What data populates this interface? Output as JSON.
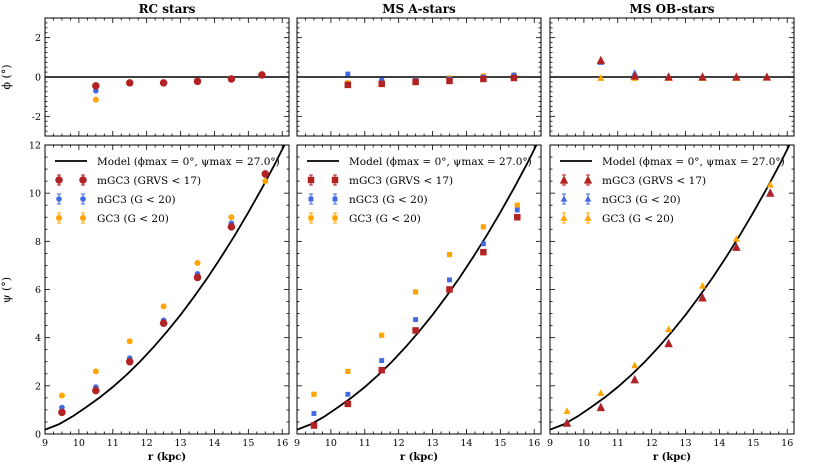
{
  "figure": {
    "xlabel": "r (kpc)",
    "top_ylabel": "ϕ (°)",
    "bottom_ylabel": "ψ (°)",
    "colors": {
      "mGC3": "#b22222",
      "nGC3": "#4169e1",
      "GC3": "#ffa500",
      "model": "#000000"
    }
  },
  "chart_data": [
    {
      "type": "scatter",
      "title": "RC stars",
      "marker": "circle",
      "xlim": [
        9,
        16.2
      ],
      "top": {
        "ylim": [
          -3,
          3
        ],
        "yticks": [
          -2,
          0,
          2
        ],
        "model_y": 0,
        "series": [
          {
            "name": "mGC3",
            "x": [
              10.5,
              11.5,
              12.5,
              13.5,
              14.5,
              15.4
            ],
            "y": [
              -0.45,
              -0.3,
              -0.3,
              -0.22,
              -0.1,
              0.1
            ]
          },
          {
            "name": "nGC3",
            "x": [
              10.5,
              11.5,
              12.5,
              13.5,
              14.5,
              15.4
            ],
            "y": [
              -0.7,
              -0.3,
              -0.3,
              -0.2,
              -0.1,
              0.1
            ]
          },
          {
            "name": "GC3",
            "x": [
              10.5,
              11.5,
              12.5,
              13.5,
              14.5,
              15.4
            ],
            "y": [
              -1.15,
              -0.3,
              -0.3,
              -0.2,
              -0.1,
              0.15
            ]
          }
        ]
      },
      "bottom": {
        "ylim": [
          0,
          12
        ],
        "yticks": [
          0,
          2,
          4,
          6,
          8,
          10,
          12
        ],
        "series": [
          {
            "name": "mGC3",
            "x": [
              9.5,
              10.5,
              11.5,
              12.5,
              13.5,
              14.5,
              15.5
            ],
            "y": [
              0.9,
              1.8,
              3.0,
              4.6,
              6.5,
              8.6,
              10.8
            ]
          },
          {
            "name": "nGC3",
            "x": [
              9.5,
              10.5,
              11.5,
              12.5,
              13.5,
              14.5,
              15.5
            ],
            "y": [
              1.1,
              1.95,
              3.15,
              4.72,
              6.65,
              8.75,
              10.75
            ]
          },
          {
            "name": "GC3",
            "x": [
              9.5,
              10.5,
              11.5,
              12.5,
              13.5,
              14.5,
              15.5
            ],
            "y": [
              1.6,
              2.6,
              3.85,
              5.3,
              7.1,
              9.0,
              10.5
            ]
          }
        ]
      }
    },
    {
      "type": "scatter",
      "title": "MS A-stars",
      "marker": "square",
      "xlim": [
        9,
        16.2
      ],
      "top": {
        "ylim": [
          -3,
          3
        ],
        "yticks": [
          -2,
          0,
          2
        ],
        "model_y": 0,
        "series": [
          {
            "name": "mGC3",
            "x": [
              10.5,
              11.5,
              12.5,
              13.5,
              14.5,
              15.4
            ],
            "y": [
              -0.4,
              -0.35,
              -0.25,
              -0.2,
              -0.1,
              -0.05
            ]
          },
          {
            "name": "nGC3",
            "x": [
              10.5,
              11.5,
              12.5,
              13.5,
              14.5,
              15.4
            ],
            "y": [
              0.15,
              -0.15,
              -0.15,
              -0.1,
              0.0,
              0.1
            ]
          },
          {
            "name": "GC3",
            "x": [
              10.5,
              11.5,
              12.5,
              13.5,
              14.5,
              15.4
            ],
            "y": [
              -0.3,
              -0.25,
              -0.15,
              -0.05,
              0.05,
              0.1
            ]
          }
        ]
      },
      "bottom": {
        "ylim": [
          0,
          12
        ],
        "yticks": [
          0,
          2,
          4,
          6,
          8,
          10,
          12
        ],
        "series": [
          {
            "name": "mGC3",
            "x": [
              9.5,
              10.5,
              11.5,
              12.5,
              13.5,
              14.5,
              15.5
            ],
            "y": [
              0.35,
              1.25,
              2.65,
              4.3,
              6.0,
              7.55,
              9.0
            ]
          },
          {
            "name": "nGC3",
            "x": [
              9.5,
              10.5,
              11.5,
              12.5,
              13.5,
              14.5,
              15.5
            ],
            "y": [
              0.85,
              1.65,
              3.05,
              4.75,
              6.4,
              7.9,
              9.3
            ]
          },
          {
            "name": "GC3",
            "x": [
              9.5,
              10.5,
              11.5,
              12.5,
              13.5,
              14.5,
              15.5
            ],
            "y": [
              1.65,
              2.6,
              4.1,
              5.9,
              7.45,
              8.6,
              9.5
            ]
          }
        ]
      }
    },
    {
      "type": "scatter",
      "title": "MS OB-stars",
      "marker": "triangle",
      "xlim": [
        9,
        16.2
      ],
      "top": {
        "ylim": [
          -3,
          3
        ],
        "yticks": [
          -2,
          0,
          2
        ],
        "model_y": 0,
        "series": [
          {
            "name": "mGC3",
            "x": [
              10.5,
              11.5,
              12.5,
              13.5,
              14.5,
              15.4
            ],
            "y": [
              0.85,
              0.05,
              0.0,
              0.0,
              0.0,
              0.0
            ]
          },
          {
            "name": "nGC3",
            "x": [
              10.5,
              11.5,
              12.5,
              13.5,
              14.5,
              15.4
            ],
            "y": [
              0.75,
              0.2,
              0.05,
              0.05,
              0.0,
              0.0
            ]
          },
          {
            "name": "GC3",
            "x": [
              10.5,
              11.5,
              12.5,
              13.5,
              14.5,
              15.4
            ],
            "y": [
              -0.05,
              -0.05,
              -0.05,
              -0.05,
              -0.05,
              0.0
            ]
          }
        ]
      },
      "bottom": {
        "ylim": [
          0,
          12
        ],
        "yticks": [
          0,
          2,
          4,
          6,
          8,
          10,
          12
        ],
        "series": [
          {
            "name": "mGC3",
            "x": [
              9.5,
              10.5,
              11.5,
              12.5,
              13.5,
              14.5,
              15.5
            ],
            "y": [
              0.45,
              1.1,
              2.25,
              3.75,
              5.65,
              7.75,
              10.0
            ]
          },
          {
            "name": "nGC3",
            "x": [
              9.5,
              10.5,
              11.5,
              12.5,
              13.5,
              14.5,
              15.5
            ],
            "y": [
              0.5,
              1.15,
              2.3,
              3.8,
              5.7,
              7.8,
              10.05
            ]
          },
          {
            "name": "GC3",
            "x": [
              9.5,
              10.5,
              11.5,
              12.5,
              13.5,
              14.5,
              15.5
            ],
            "y": [
              0.95,
              1.7,
              2.85,
              4.35,
              6.15,
              8.1,
              10.35
            ]
          }
        ]
      }
    }
  ],
  "model": {
    "x": [
      9,
      9.4,
      9.8,
      10.2,
      10.6,
      11.0,
      11.4,
      11.8,
      12.2,
      12.6,
      13.0,
      13.4,
      13.8,
      14.2,
      14.6,
      15.0,
      15.4,
      15.8,
      16.1
    ],
    "y": [
      0.18,
      0.4,
      0.72,
      1.1,
      1.5,
      1.95,
      2.45,
      3.0,
      3.6,
      4.25,
      4.95,
      5.7,
      6.5,
      7.35,
      8.25,
      9.2,
      10.2,
      11.25,
      12.1
    ]
  },
  "legend": {
    "model_label": "Model (ϕmax = 0°, ψmax = 27.0°)",
    "mGC3_label": "mGC3 (GRVS < 17)",
    "nGC3_label": "nGC3 (G < 20)",
    "GC3_label": "GC3 (G < 20)"
  }
}
